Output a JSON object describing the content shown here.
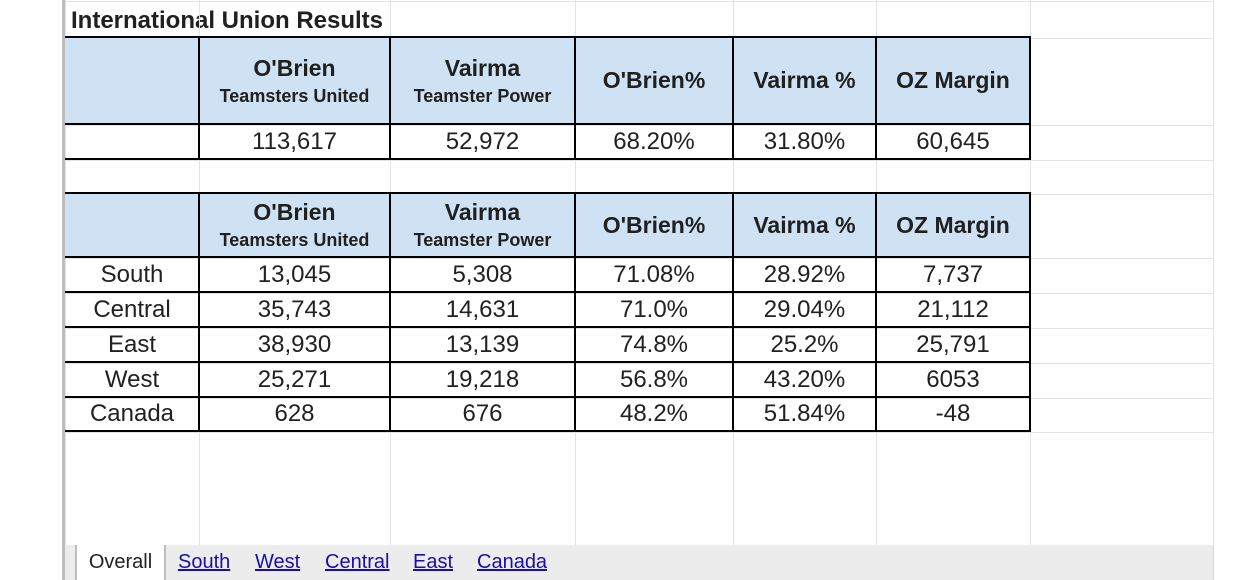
{
  "sheet": {
    "title": "International Union Results",
    "headers": {
      "obrien_name": "O'Brien",
      "obrien_slate": "Teamsters United",
      "vairma_name": "Vairma",
      "vairma_slate": "Teamster Power",
      "obrien_pct": "O'Brien%",
      "vairma_pct": "Vairma %",
      "margin": "OZ Margin"
    },
    "totals": {
      "obrien": "113,617",
      "vairma": "52,972",
      "obrien_pct": "68.20%",
      "vairma_pct": "31.80%",
      "margin": "60,645"
    },
    "rows": [
      {
        "region": "South",
        "obrien": "13,045",
        "vairma": "5,308",
        "obrien_pct": "71.08%",
        "vairma_pct": "28.92%",
        "margin": "7,737"
      },
      {
        "region": "Central",
        "obrien": "35,743",
        "vairma": "14,631",
        "obrien_pct": "71.0%",
        "vairma_pct": "29.04%",
        "margin": "21,112"
      },
      {
        "region": "East",
        "obrien": "38,930",
        "vairma": "13,139",
        "obrien_pct": "74.8%",
        "vairma_pct": "25.2%",
        "margin": "25,791"
      },
      {
        "region": "West",
        "obrien": "25,271",
        "vairma": "19,218",
        "obrien_pct": "56.8%",
        "vairma_pct": "43.20%",
        "margin": "6053"
      },
      {
        "region": "Canada",
        "obrien": "628",
        "vairma": "676",
        "obrien_pct": "48.2%",
        "vairma_pct": "51.84%",
        "margin": "-48"
      }
    ]
  },
  "tabs": {
    "active": "Overall",
    "links": [
      "South",
      "West",
      "Central",
      "East",
      "Canada"
    ]
  }
}
